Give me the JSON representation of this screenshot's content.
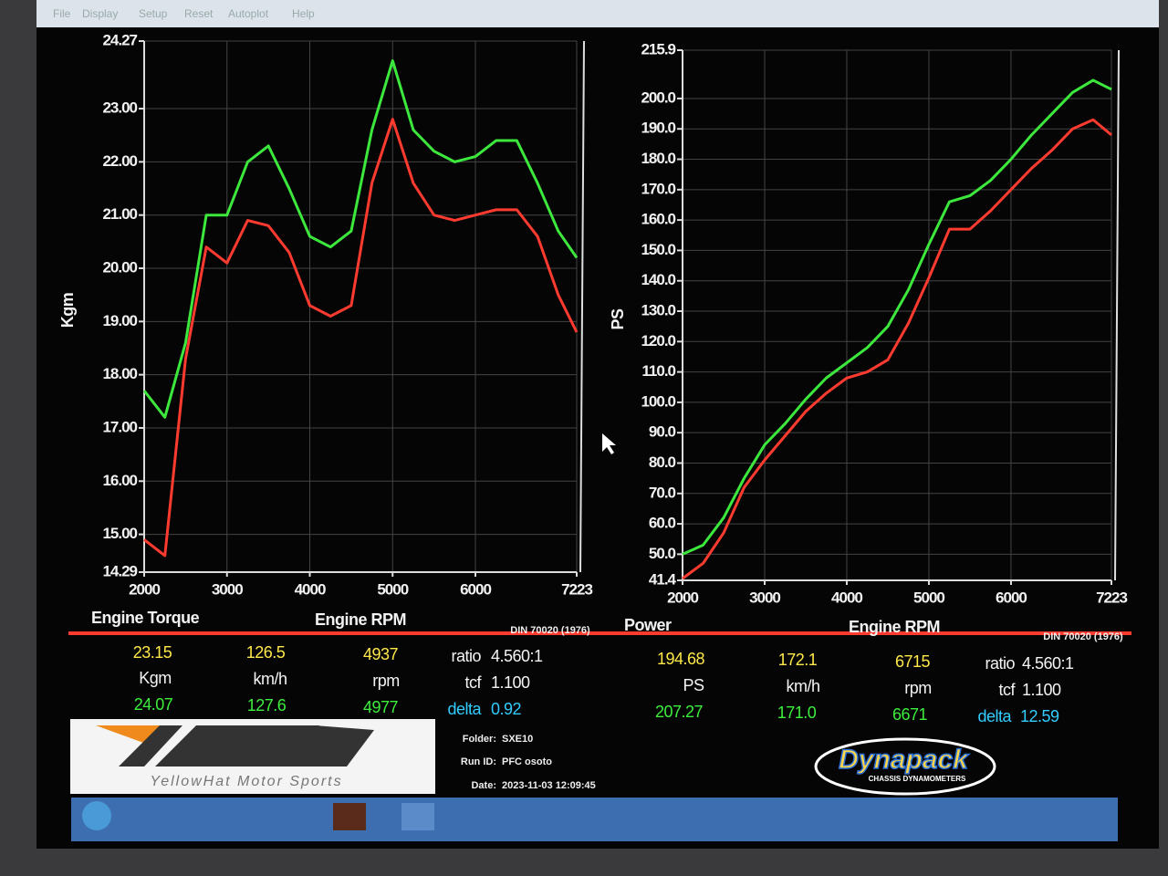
{
  "menu": [
    "File",
    "Display",
    "Setup",
    "Reset",
    "Autoplot",
    "Help"
  ],
  "chart_data": [
    {
      "type": "line",
      "title": "Engine Torque",
      "x_label": "Engine RPM",
      "y_label": "Kgm",
      "note": "DIN 70020 (1976)",
      "x": [
        2000,
        2250,
        2500,
        2750,
        3000,
        3250,
        3500,
        3750,
        4000,
        4250,
        4500,
        4750,
        5000,
        5250,
        5500,
        5750,
        6000,
        6250,
        6500,
        6750,
        7000,
        7223
      ],
      "series": [
        {
          "color": "#3de83d",
          "values": [
            17.7,
            17.2,
            18.6,
            21.0,
            21.0,
            22.0,
            22.3,
            21.5,
            20.6,
            20.4,
            20.7,
            22.6,
            23.9,
            22.6,
            22.2,
            22.0,
            22.1,
            22.4,
            22.4,
            21.6,
            20.7,
            20.2
          ]
        },
        {
          "color": "#ff3b30",
          "values": [
            14.9,
            14.6,
            18.3,
            20.4,
            20.1,
            20.9,
            20.8,
            20.3,
            19.3,
            19.1,
            19.3,
            21.6,
            22.8,
            21.6,
            21.0,
            20.9,
            21.0,
            21.1,
            21.1,
            20.6,
            19.5,
            18.8
          ]
        }
      ],
      "xlim": [
        2000,
        7223
      ],
      "xticks": [
        2000,
        3000,
        4000,
        5000,
        6000,
        7223
      ],
      "ylim": [
        14.29,
        24.27
      ],
      "yticks": [
        14.29,
        {
          "value": 15,
          "label": "15.00"
        },
        {
          "value": 16,
          "label": "16.00"
        },
        {
          "value": 17,
          "label": "17.00"
        },
        {
          "value": 18,
          "label": "18.00"
        },
        {
          "value": 19,
          "label": "19.00"
        },
        {
          "value": 20,
          "label": "20.00"
        },
        {
          "value": 21,
          "label": "21.00"
        },
        {
          "value": 22,
          "label": "22.00"
        },
        {
          "value": 23,
          "label": "23.00"
        },
        24.27
      ],
      "grid": true
    },
    {
      "type": "line",
      "title": "Power",
      "x_label": "Engine RPM",
      "y_label": "PS",
      "note": "DIN 70020 (1976)",
      "x": [
        2000,
        2250,
        2500,
        2750,
        3000,
        3250,
        3500,
        3750,
        4000,
        4250,
        4500,
        4750,
        5000,
        5250,
        5500,
        5750,
        6000,
        6250,
        6500,
        6750,
        7000,
        7223
      ],
      "series": [
        {
          "color": "#3de83d",
          "values": [
            50,
            53,
            62,
            75,
            86,
            93,
            101,
            108,
            113,
            118,
            125,
            137,
            152,
            166,
            168,
            173,
            180,
            188,
            195,
            202,
            206,
            203
          ]
        },
        {
          "color": "#ff3b30",
          "values": [
            42,
            47,
            57,
            72,
            81,
            89,
            97,
            103,
            108,
            110,
            114,
            126,
            141,
            157,
            157,
            163,
            170,
            177,
            183,
            190,
            193,
            188
          ]
        }
      ],
      "xlim": [
        2000,
        7223
      ],
      "xticks": [
        2000,
        3000,
        4000,
        5000,
        6000,
        7223
      ],
      "ylim": [
        41.4,
        215.9
      ],
      "yticks": [
        41.4,
        {
          "value": 50,
          "label": "50.0"
        },
        {
          "value": 60,
          "label": "60.0"
        },
        {
          "value": 70,
          "label": "70.0"
        },
        {
          "value": 80,
          "label": "80.0"
        },
        {
          "value": 90,
          "label": "90.0"
        },
        {
          "value": 100,
          "label": "100.0"
        },
        {
          "value": 110,
          "label": "110.0"
        },
        {
          "value": 120,
          "label": "120.0"
        },
        {
          "value": 130,
          "label": "130.0"
        },
        {
          "value": 140,
          "label": "140.0"
        },
        {
          "value": 150,
          "label": "150.0"
        },
        {
          "value": 160,
          "label": "160.0"
        },
        {
          "value": 170,
          "label": "170.0"
        },
        {
          "value": 180,
          "label": "180.0"
        },
        {
          "value": 190,
          "label": "190.0"
        },
        {
          "value": 200,
          "label": "200.0"
        },
        215.9
      ],
      "grid": true
    }
  ],
  "readouts": [
    {
      "row1": [
        "23.15",
        "126.5",
        "4937"
      ],
      "units": [
        "Kgm",
        "km/h",
        "rpm"
      ],
      "row2": [
        "24.07",
        "127.6",
        "4977"
      ],
      "ratio": [
        "ratio",
        "4.560:1"
      ],
      "tcf": [
        "tcf",
        "1.100"
      ],
      "delta": [
        "delta",
        "0.92"
      ]
    },
    {
      "row1": [
        "194.68",
        "172.1",
        "6715"
      ],
      "units": [
        "PS",
        "km/h",
        "rpm"
      ],
      "row2": [
        "207.27",
        "171.0",
        "6671"
      ],
      "ratio": [
        "ratio",
        "4.560:1"
      ],
      "tcf": [
        "tcf",
        "1.100"
      ],
      "delta": [
        "delta",
        "12.59"
      ]
    }
  ],
  "run_info": {
    "folder": [
      "Folder:",
      "SXE10"
    ],
    "run_id": [
      "Run ID:",
      "PFC osoto"
    ],
    "date": [
      "Date:",
      "2023-11-03 12:09:45"
    ]
  },
  "logos": {
    "ims": "YellowHat Motor Sports",
    "dynapack": "Dynapack",
    "dynapack_sub": "CHASSIS DYNAMOMETERS"
  }
}
